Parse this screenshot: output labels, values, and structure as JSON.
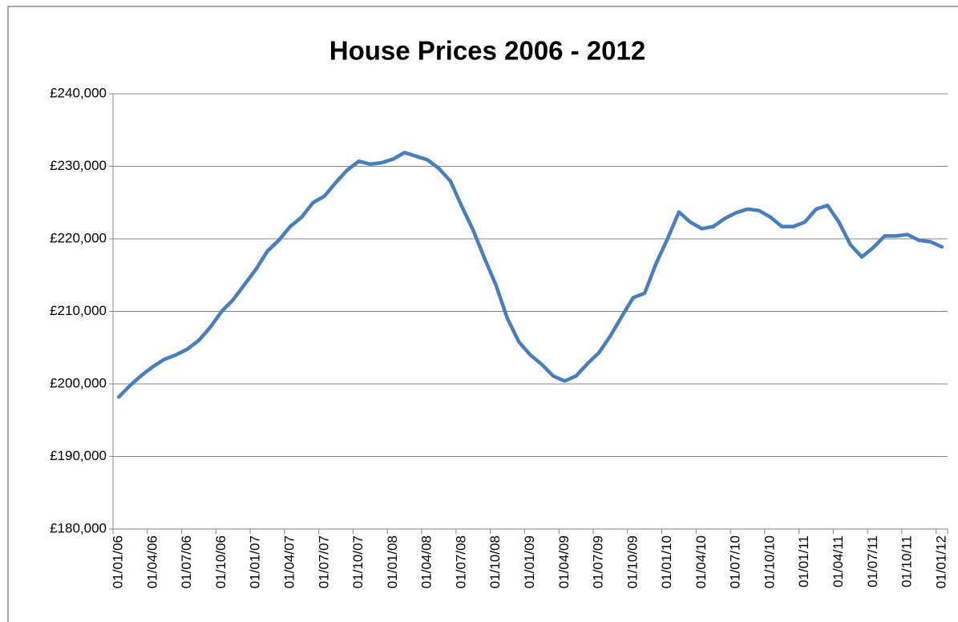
{
  "chart_data": {
    "type": "line",
    "title": "House Prices 2006 - 2012",
    "categories": [
      "01/01/06",
      null,
      null,
      "01/04/06",
      null,
      null,
      "01/07/06",
      null,
      null,
      "01/10/06",
      null,
      null,
      "01/01/07",
      null,
      null,
      "01/04/07",
      null,
      null,
      "01/07/07",
      null,
      null,
      "01/10/07",
      null,
      null,
      "01/01/08",
      null,
      null,
      "01/04/08",
      null,
      null,
      "01/07/08",
      null,
      null,
      "01/10/08",
      null,
      null,
      "01/01/09",
      null,
      null,
      "01/04/09",
      null,
      null,
      "01/07/09",
      null,
      null,
      "01/10/09",
      null,
      null,
      "01/01/10",
      null,
      null,
      "01/04/10",
      null,
      null,
      "01/07/10",
      null,
      null,
      "01/10/10",
      null,
      null,
      "01/01/11",
      null,
      null,
      "01/04/11",
      null,
      null,
      "01/07/11",
      null,
      null,
      "01/10/11",
      null,
      null,
      "01/01/12"
    ],
    "values": [
      198200,
      199800,
      201200,
      202400,
      203400,
      204000,
      204800,
      206000,
      207800,
      210000,
      211600,
      213700,
      215800,
      218300,
      219800,
      221700,
      223000,
      225000,
      225900,
      227800,
      229500,
      230700,
      230300,
      230500,
      231000,
      231900,
      231400,
      230900,
      229700,
      228000,
      224500,
      221200,
      217300,
      213600,
      209000,
      205800,
      204000,
      202700,
      201100,
      200400,
      201100,
      202800,
      204300,
      206600,
      209300,
      211900,
      212500,
      216600,
      220000,
      223700,
      222300,
      221400,
      221700,
      222800,
      223600,
      224100,
      223900,
      223000,
      221700,
      221700,
      222300,
      224100,
      224600,
      222300,
      219200,
      217500,
      218800,
      220400,
      220400,
      220600,
      219800,
      219600,
      218900
    ],
    "color": "#4a7ebb",
    "ylim": [
      180000,
      240000
    ],
    "yticks": [
      {
        "value": 180000,
        "label": "£180,000"
      },
      {
        "value": 190000,
        "label": "£190,000"
      },
      {
        "value": 200000,
        "label": "£200,000"
      },
      {
        "value": 210000,
        "label": "£210,000"
      },
      {
        "value": 220000,
        "label": "£220,000"
      },
      {
        "value": 230000,
        "label": "£230,000"
      },
      {
        "value": 240000,
        "label": "£240,000"
      }
    ],
    "grid": true
  }
}
